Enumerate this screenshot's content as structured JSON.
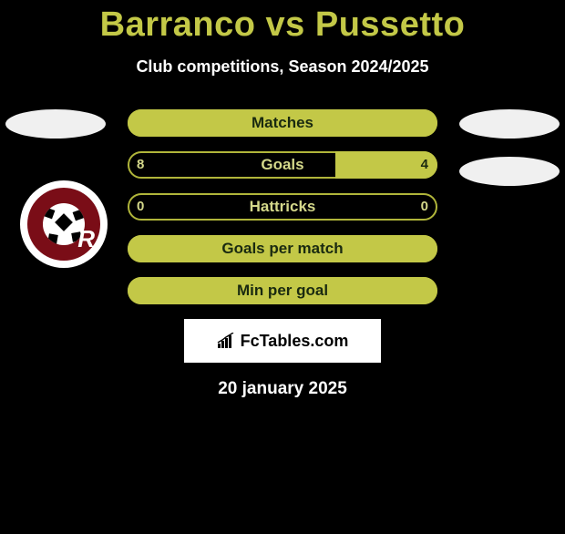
{
  "title": "Barranco vs Pussetto",
  "subtitle": "Club competitions, Season 2024/2025",
  "date": "20 january 2025",
  "brand": "FcTables.com",
  "colors": {
    "accent": "#c3c847",
    "accent_border": "#b0b53a",
    "text_on_accent": "#1a2a10",
    "text_on_dark": "#d4d88a",
    "ellipse": "#f0f0f0",
    "badge_bg": "#7a0d17",
    "badge_ring": "#ffffff",
    "white": "#ffffff",
    "black": "#000000"
  },
  "bars": [
    {
      "label": "Matches",
      "left_value": null,
      "right_value": null,
      "left_fill_pct": 100,
      "right_fill_pct": 0,
      "fill_color": "#c3c847",
      "border_color": "#b0b53a",
      "label_color": "#1a2a10",
      "value_color": "#1a2a10"
    },
    {
      "label": "Goals",
      "left_value": "8",
      "right_value": "4",
      "left_fill_pct": 0,
      "right_fill_pct": 33,
      "fill_color": "#c3c847",
      "border_color": "#b0b53a",
      "label_color": "#d4d88a",
      "value_color_left": "#d4d88a",
      "value_color_right": "#1a2a10"
    },
    {
      "label": "Hattricks",
      "left_value": "0",
      "right_value": "0",
      "left_fill_pct": 0,
      "right_fill_pct": 0,
      "fill_color": "#c3c847",
      "border_color": "#b0b53a",
      "label_color": "#d4d88a",
      "value_color_left": "#d4d88a",
      "value_color_right": "#d4d88a"
    },
    {
      "label": "Goals per match",
      "left_value": null,
      "right_value": null,
      "left_fill_pct": 100,
      "right_fill_pct": 0,
      "fill_color": "#c3c847",
      "border_color": "#b0b53a",
      "label_color": "#1a2a10",
      "value_color": "#1a2a10"
    },
    {
      "label": "Min per goal",
      "left_value": null,
      "right_value": null,
      "left_fill_pct": 100,
      "right_fill_pct": 0,
      "fill_color": "#c3c847",
      "border_color": "#b0b53a",
      "label_color": "#1a2a10",
      "value_color": "#1a2a10"
    }
  ]
}
